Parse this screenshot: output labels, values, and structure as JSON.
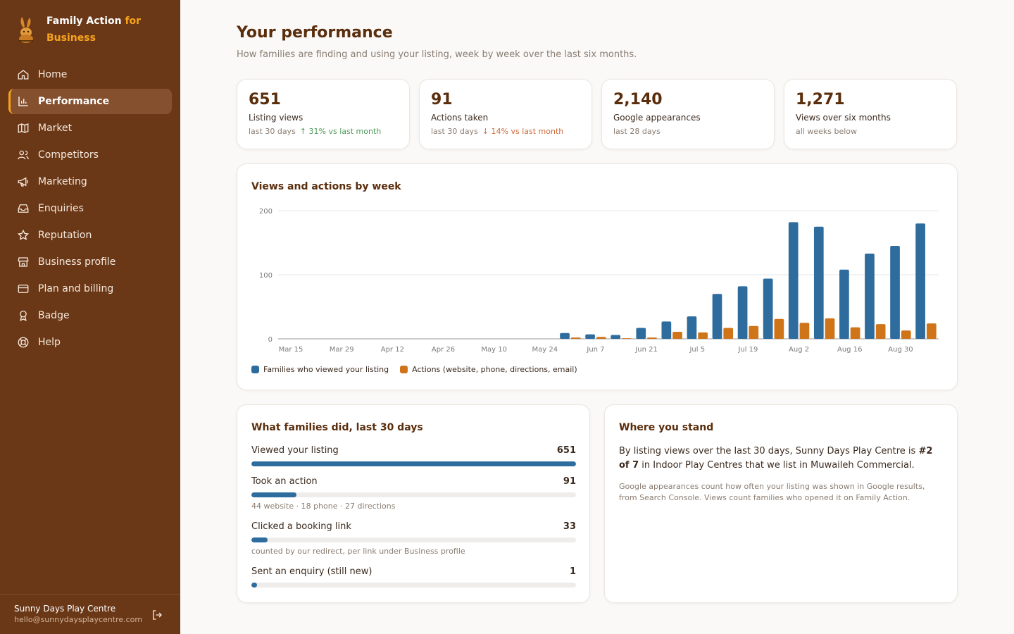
{
  "brand": {
    "name": "Family Action",
    "suffix_accent": "for",
    "suffix": "Business"
  },
  "nav": [
    {
      "id": "home",
      "label": "Home",
      "icon": "home-icon",
      "active": false
    },
    {
      "id": "performance",
      "label": "Performance",
      "icon": "bar-chart-icon",
      "active": true
    },
    {
      "id": "market",
      "label": "Market",
      "icon": "map-icon",
      "active": false
    },
    {
      "id": "competitors",
      "label": "Competitors",
      "icon": "users-icon",
      "active": false
    },
    {
      "id": "marketing",
      "label": "Marketing",
      "icon": "megaphone-icon",
      "active": false
    },
    {
      "id": "enquiries",
      "label": "Enquiries",
      "icon": "inbox-icon",
      "active": false
    },
    {
      "id": "reputation",
      "label": "Reputation",
      "icon": "star-icon",
      "active": false
    },
    {
      "id": "business-profile",
      "label": "Business profile",
      "icon": "store-icon",
      "active": false
    },
    {
      "id": "plan-and-billing",
      "label": "Plan and billing",
      "icon": "credit-card-icon",
      "active": false
    },
    {
      "id": "badge",
      "label": "Badge",
      "icon": "award-icon",
      "active": false
    },
    {
      "id": "help",
      "label": "Help",
      "icon": "lifebuoy-icon",
      "active": false
    }
  ],
  "account": {
    "name": "Sunny Days Play Centre",
    "email": "hello@sunnydaysplaycentre.com"
  },
  "header": {
    "title": "Your performance",
    "subtitle": "How families are finding and using your listing, week by week over the last six months."
  },
  "kpis": [
    {
      "value": "651",
      "label": "Listing views",
      "period": "last 30 days",
      "delta": "↑ 31% vs last month",
      "delta_dir": "up"
    },
    {
      "value": "91",
      "label": "Actions taken",
      "period": "last 30 days",
      "delta": "↓ 14% vs last month",
      "delta_dir": "down"
    },
    {
      "value": "2,140",
      "label": "Google appearances",
      "period": "last 28 days",
      "delta": "",
      "delta_dir": ""
    },
    {
      "value": "1,271",
      "label": "Views over six months",
      "period": "all weeks below",
      "delta": "",
      "delta_dir": ""
    }
  ],
  "colors": {
    "views": "#2f6c9e",
    "actions": "#cf7419",
    "sidebar": "#6a3817",
    "accent": "#f6a31d"
  },
  "chart_data": {
    "type": "bar",
    "title": "Views and actions by week",
    "x": [
      "Mar 15",
      "Mar 22",
      "Mar 29",
      "Apr 5",
      "Apr 12",
      "Apr 19",
      "Apr 26",
      "May 3",
      "May 10",
      "May 17",
      "May 24",
      "May 31",
      "Jun 7",
      "Jun 14",
      "Jun 21",
      "Jun 28",
      "Jul 5",
      "Jul 12",
      "Jul 19",
      "Jul 26",
      "Aug 2",
      "Aug 9",
      "Aug 16",
      "Aug 23",
      "Aug 30",
      "Sep 6"
    ],
    "tick_labels": [
      "Mar 15",
      "Mar 29",
      "Apr 12",
      "Apr 26",
      "May 10",
      "May 24",
      "Jun 7",
      "Jun 21",
      "Jul 5",
      "Jul 19",
      "Aug 2",
      "Aug 16",
      "Aug 30"
    ],
    "series": [
      {
        "name": "Families who viewed your listing",
        "values": [
          0,
          0,
          0,
          0,
          0,
          0,
          0,
          0,
          0,
          0,
          0,
          9,
          7,
          6,
          17,
          27,
          35,
          70,
          82,
          94,
          182,
          175,
          108,
          133,
          145,
          180
        ]
      },
      {
        "name": "Actions (website, phone, directions, email)",
        "values": [
          0,
          0,
          0,
          0,
          0,
          0,
          0,
          0,
          0,
          0,
          0,
          2,
          3,
          1,
          2,
          11,
          10,
          17,
          20,
          31,
          25,
          32,
          18,
          23,
          13,
          24
        ]
      }
    ],
    "ylim": [
      0,
      200
    ],
    "yticks": [
      0,
      100,
      200
    ],
    "grid": true,
    "legend": "bottom-left"
  },
  "activity": {
    "title": "What families did, last 30 days",
    "max": 651,
    "rows": [
      {
        "label": "Viewed your listing",
        "value": 651,
        "value_text": "651",
        "note": ""
      },
      {
        "label": "Took an action",
        "value": 91,
        "value_text": "91",
        "note": "44 website · 18 phone · 27 directions"
      },
      {
        "label": "Clicked a booking link",
        "value": 33,
        "value_text": "33",
        "note": "counted by our redirect, per link under Business profile"
      },
      {
        "label": "Sent an enquiry (still new)",
        "value": 1,
        "value_text": "1",
        "note": ""
      }
    ]
  },
  "standing": {
    "title": "Where you stand",
    "text_before": "By listing views over the last 30 days, Sunny Days Play Centre is ",
    "rank": "#2 of 7",
    "text_after": " in Indoor Play Centres that we list in Muwaileh Commercial.",
    "note": "Google appearances count how often your listing was shown in Google results, from Search Console. Views count families who opened it on Family Action."
  }
}
